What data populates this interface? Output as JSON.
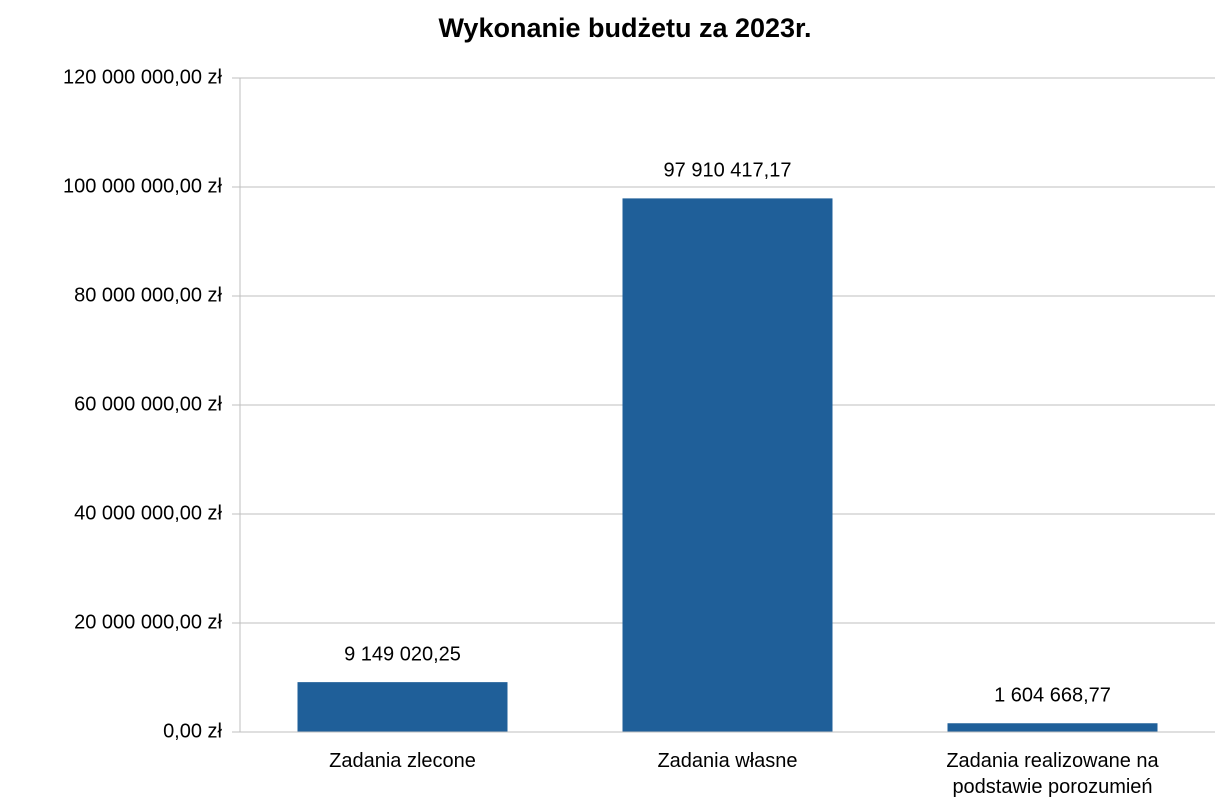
{
  "chart_data": {
    "type": "bar",
    "title": "Wykonanie budżetu za 2023r.",
    "categories": [
      "Zadania zlecone",
      "Zadania własne",
      "Zadania realizowane na podstawie porozumień"
    ],
    "values": [
      9149020.25,
      97910417.17,
      1604668.77
    ],
    "value_labels": [
      "9 149 020,25",
      "97 910 417,17",
      "1 604 668,77"
    ],
    "color": "#1f5f99",
    "ylim": [
      0,
      120000000
    ],
    "yticks": [
      {
        "value": 0,
        "label": "0,00 zł"
      },
      {
        "value": 20000000,
        "label": "20 000 000,00 zł"
      },
      {
        "value": 40000000,
        "label": "40 000 000,00 zł"
      },
      {
        "value": 60000000,
        "label": "60 000 000,00 zł"
      },
      {
        "value": 80000000,
        "label": "80 000 000,00 zł"
      },
      {
        "value": 100000000,
        "label": "100 000 000,00 zł"
      },
      {
        "value": 120000000,
        "label": "120 000 000,00 zł"
      }
    ],
    "grid": true
  }
}
